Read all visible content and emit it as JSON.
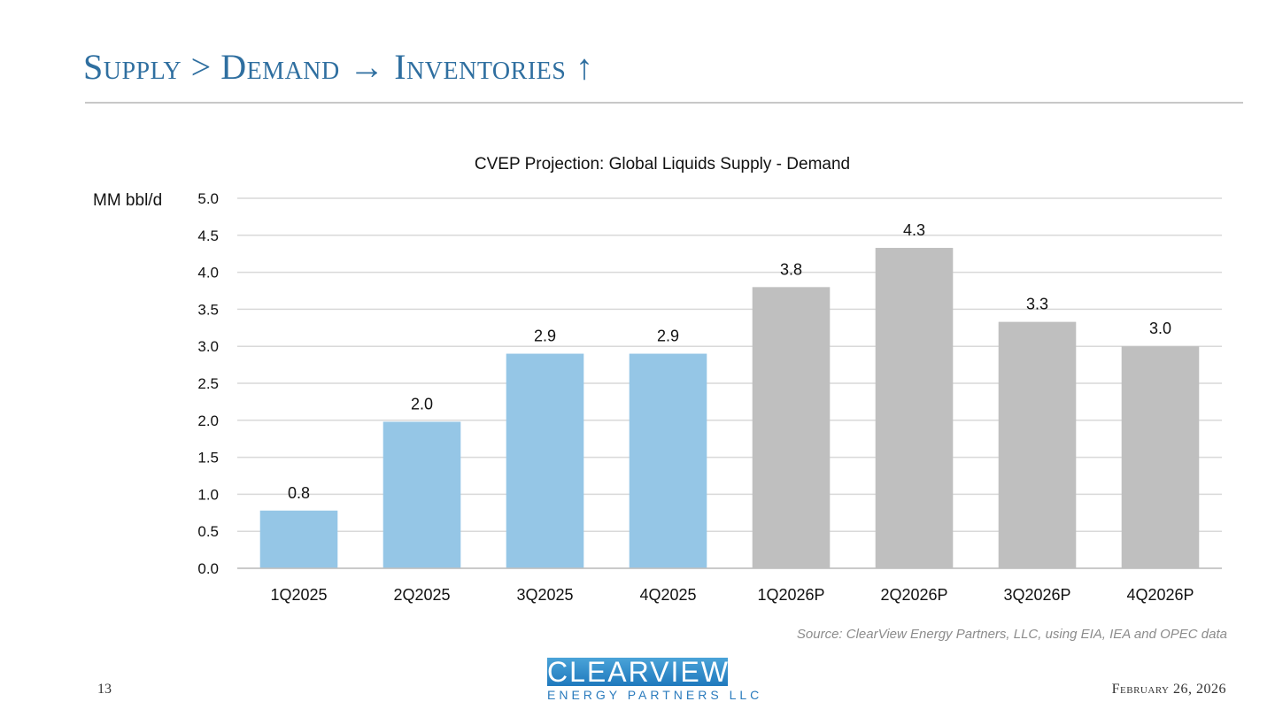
{
  "slide": {
    "title": "Supply > Demand  →  Inventories ↑",
    "page_number": "13",
    "date": "February 26, 2026",
    "source": "Source: ClearView Energy Partners, LLC, using EIA, IEA and OPEC data"
  },
  "logo": {
    "top_text": "CLEARVIEW",
    "bottom_text": "ENERGY PARTNERS LLC"
  },
  "colors": {
    "actual": "#95c6e6",
    "projected": "#bfbfbf",
    "grid": "#d9d9d9"
  },
  "chart_data": {
    "type": "bar",
    "title": "CVEP Projection: Global Liquids Supply - Demand",
    "ylabel": "MM bbl/d",
    "xlabel": "",
    "ylim": [
      0,
      5
    ],
    "yticks": [
      "0.0",
      "0.5",
      "1.0",
      "1.5",
      "2.0",
      "2.5",
      "3.0",
      "3.5",
      "4.0",
      "4.5",
      "5.0"
    ],
    "grid": true,
    "categories": [
      "1Q2025",
      "2Q2025",
      "3Q2025",
      "4Q2025",
      "1Q2026P",
      "2Q2026P",
      "3Q2026P",
      "4Q2026P"
    ],
    "values": [
      0.78,
      1.98,
      2.9,
      2.9,
      3.8,
      4.33,
      3.33,
      3.0
    ],
    "data_labels": [
      "0.8",
      "2.0",
      "2.9",
      "2.9",
      "3.8",
      "4.3",
      "3.3",
      "3.0"
    ],
    "projected": [
      false,
      false,
      false,
      false,
      true,
      true,
      true,
      true
    ]
  }
}
